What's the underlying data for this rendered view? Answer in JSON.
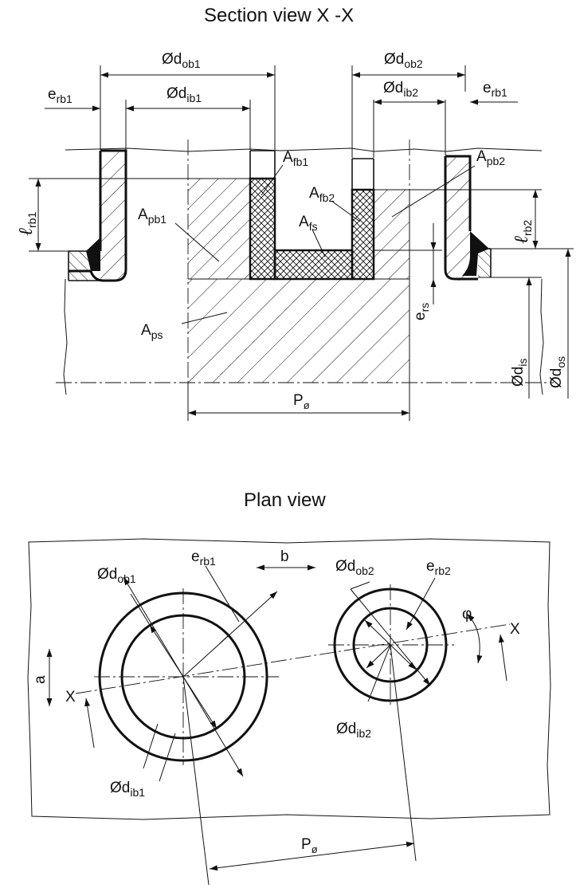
{
  "section": {
    "title": "Section view  X -X",
    "labels": {
      "d_ob1": {
        "main": "Ød",
        "sub": "ob1"
      },
      "d_ob2": {
        "main": "Ød",
        "sub": "ob2"
      },
      "d_ib1": {
        "main": "Ød",
        "sub": "ib1"
      },
      "d_ib2": {
        "main": "Ød",
        "sub": "ib2"
      },
      "e_rb1_left": {
        "main": "e",
        "sub": "rb1"
      },
      "e_rb1_right": {
        "main": "e",
        "sub": "rb1"
      },
      "l_rb1": {
        "main": "ℓ",
        "sub": "rb1"
      },
      "l_rb2": {
        "main": "ℓ",
        "sub": "rb2"
      },
      "A_fb1": {
        "main": "A",
        "sub": "fb1"
      },
      "A_fb2": {
        "main": "A",
        "sub": "fb2"
      },
      "A_pb1": {
        "main": "A",
        "sub": "pb1"
      },
      "A_pb2": {
        "main": "A",
        "sub": "pb2"
      },
      "A_fs": {
        "main": "A",
        "sub": "fs"
      },
      "A_ps": {
        "main": "A",
        "sub": "ps"
      },
      "e_rs": {
        "main": "e",
        "sub": "rs"
      },
      "d_is": {
        "main": "Ød",
        "sub": "is"
      },
      "d_os": {
        "main": "Ød",
        "sub": "os"
      },
      "P_phi": {
        "main": "P",
        "sub": "ø"
      }
    }
  },
  "plan": {
    "title": "Plan view",
    "labels": {
      "d_ob1": {
        "main": "Ød",
        "sub": "ob1"
      },
      "e_rb1": {
        "main": "e",
        "sub": "rb1"
      },
      "b": "b",
      "d_ob2": {
        "main": "Ød",
        "sub": "ob2"
      },
      "e_rb2": {
        "main": "e",
        "sub": "rb2"
      },
      "a": "a",
      "phi": "φ",
      "X_left": "X",
      "X_right": "X",
      "d_ib1": {
        "main": "Ød",
        "sub": "ib1"
      },
      "d_ib2": {
        "main": "Ød",
        "sub": "ib2"
      },
      "P_phi": {
        "main": "P",
        "sub": "ø"
      }
    }
  }
}
